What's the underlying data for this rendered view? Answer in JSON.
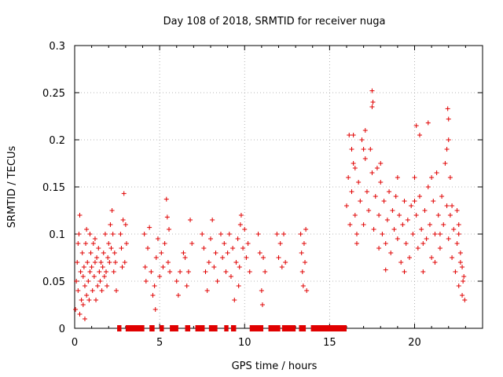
{
  "chart_data": {
    "type": "scatter",
    "title": "Day 108 of 2018, SRMTID for receiver nuga",
    "xlabel": "GPS time / hours",
    "ylabel": "SRMTID / TECUs",
    "xlim": [
      0,
      24
    ],
    "ylim": [
      0,
      0.3
    ],
    "xticks": [
      0,
      5,
      10,
      15,
      20
    ],
    "xtick_labels": [
      "0",
      "5",
      "10",
      "15",
      "20"
    ],
    "yticks": [
      0,
      0.05,
      0.1,
      0.15,
      0.2,
      0.25,
      0.3
    ],
    "ytick_labels": [
      "0",
      "0.05",
      "0.1",
      "0.15",
      "0.2",
      "0.25",
      "0.3"
    ],
    "grid": true,
    "marker": "+",
    "color": "#e00000",
    "series": [
      {
        "name": "SRMTID",
        "points": [
          [
            0.05,
            0.02
          ],
          [
            0.1,
            0.05
          ],
          [
            0.15,
            0.07
          ],
          [
            0.2,
            0.04
          ],
          [
            0.25,
            0.1
          ],
          [
            0.3,
            0.12
          ],
          [
            0.35,
            0.06
          ],
          [
            0.4,
            0.03
          ],
          [
            0.45,
            0.08
          ],
          [
            0.5,
            0.055
          ],
          [
            0.55,
            0.065
          ],
          [
            0.6,
            0.045
          ],
          [
            0.65,
            0.09
          ],
          [
            0.7,
            0.035
          ],
          [
            0.75,
            0.07
          ],
          [
            0.8,
            0.05
          ],
          [
            0.85,
            0.03
          ],
          [
            0.9,
            0.06
          ],
          [
            0.95,
            0.08
          ],
          [
            1.0,
            0.065
          ],
          [
            1.05,
            0.04
          ],
          [
            1.1,
            0.09
          ],
          [
            1.15,
            0.055
          ],
          [
            1.2,
            0.07
          ],
          [
            1.25,
            0.03
          ],
          [
            1.3,
            0.075
          ],
          [
            1.35,
            0.045
          ],
          [
            1.4,
            0.085
          ],
          [
            1.45,
            0.06
          ],
          [
            1.5,
            0.05
          ],
          [
            1.55,
            0.07
          ],
          [
            1.6,
            0.04
          ],
          [
            1.65,
            0.065
          ],
          [
            1.7,
            0.08
          ],
          [
            1.75,
            0.055
          ],
          [
            1.8,
            0.1
          ],
          [
            1.85,
            0.06
          ],
          [
            1.9,
            0.045
          ],
          [
            1.95,
            0.075
          ],
          [
            2.0,
            0.09
          ],
          [
            2.05,
            0.07
          ],
          [
            2.1,
            0.11
          ],
          [
            2.15,
            0.085
          ],
          [
            2.2,
            0.125
          ],
          [
            2.25,
            0.1
          ],
          [
            2.3,
            0.06
          ],
          [
            2.35,
            0.08
          ],
          [
            2.4,
            0.07
          ],
          [
            2.45,
            0.04
          ],
          [
            0.3,
            0.015
          ],
          [
            0.5,
            0.025
          ],
          [
            0.6,
            0.01
          ],
          [
            0.9,
            0.1
          ],
          [
            1.2,
            0.095
          ],
          [
            0.2,
            0.09
          ],
          [
            0.7,
            0.105
          ],
          [
            2.7,
            0.1
          ],
          [
            2.75,
            0.085
          ],
          [
            2.8,
            0.065
          ],
          [
            2.85,
            0.115
          ],
          [
            2.9,
            0.143
          ],
          [
            2.95,
            0.07
          ],
          [
            3.0,
            0.11
          ],
          [
            3.05,
            0.09
          ],
          [
            4.1,
            0.1
          ],
          [
            4.15,
            0.065
          ],
          [
            4.2,
            0.05
          ],
          [
            4.3,
            0.085
          ],
          [
            4.4,
            0.107
          ],
          [
            4.5,
            0.06
          ],
          [
            4.6,
            0.035
          ],
          [
            4.7,
            0.045
          ],
          [
            4.75,
            0.02
          ],
          [
            4.8,
            0.075
          ],
          [
            4.9,
            0.095
          ],
          [
            5.0,
            0.055
          ],
          [
            5.1,
            0.08
          ],
          [
            5.2,
            0.065
          ],
          [
            5.3,
            0.09
          ],
          [
            5.4,
            0.137
          ],
          [
            5.45,
            0.118
          ],
          [
            5.5,
            0.07
          ],
          [
            5.55,
            0.105
          ],
          [
            5.6,
            0.06
          ],
          [
            6.0,
            0.05
          ],
          [
            6.1,
            0.035
          ],
          [
            6.2,
            0.06
          ],
          [
            6.4,
            0.08
          ],
          [
            6.5,
            0.075
          ],
          [
            6.6,
            0.045
          ],
          [
            6.7,
            0.06
          ],
          [
            6.8,
            0.115
          ],
          [
            6.9,
            0.09
          ],
          [
            7.5,
            0.1
          ],
          [
            7.6,
            0.085
          ],
          [
            7.7,
            0.06
          ],
          [
            7.8,
            0.04
          ],
          [
            7.9,
            0.07
          ],
          [
            8.0,
            0.095
          ],
          [
            8.1,
            0.115
          ],
          [
            8.2,
            0.065
          ],
          [
            8.3,
            0.08
          ],
          [
            8.4,
            0.05
          ],
          [
            8.6,
            0.1
          ],
          [
            8.7,
            0.075
          ],
          [
            8.8,
            0.09
          ],
          [
            8.9,
            0.06
          ],
          [
            9.0,
            0.08
          ],
          [
            9.1,
            0.1
          ],
          [
            9.2,
            0.055
          ],
          [
            9.3,
            0.085
          ],
          [
            9.4,
            0.03
          ],
          [
            9.5,
            0.07
          ],
          [
            9.6,
            0.095
          ],
          [
            9.7,
            0.065
          ],
          [
            9.8,
            0.12
          ],
          [
            9.9,
            0.085
          ],
          [
            10.0,
            0.105
          ],
          [
            10.1,
            0.075
          ],
          [
            10.2,
            0.09
          ],
          [
            10.3,
            0.06
          ],
          [
            9.65,
            0.045
          ],
          [
            9.75,
            0.11
          ],
          [
            10.8,
            0.1
          ],
          [
            10.9,
            0.08
          ],
          [
            11.0,
            0.04
          ],
          [
            11.05,
            0.025
          ],
          [
            11.1,
            0.075
          ],
          [
            11.2,
            0.06
          ],
          [
            11.9,
            0.1
          ],
          [
            12.0,
            0.075
          ],
          [
            12.1,
            0.09
          ],
          [
            12.2,
            0.065
          ],
          [
            12.3,
            0.1
          ],
          [
            12.4,
            0.07
          ],
          [
            13.3,
            0.1
          ],
          [
            13.35,
            0.08
          ],
          [
            13.4,
            0.06
          ],
          [
            13.45,
            0.045
          ],
          [
            13.5,
            0.09
          ],
          [
            13.55,
            0.07
          ],
          [
            13.6,
            0.105
          ],
          [
            13.65,
            0.04
          ],
          [
            16.0,
            0.13
          ],
          [
            16.1,
            0.16
          ],
          [
            16.15,
            0.205
          ],
          [
            16.2,
            0.11
          ],
          [
            16.3,
            0.145
          ],
          [
            16.4,
            0.175
          ],
          [
            16.5,
            0.12
          ],
          [
            16.6,
            0.09
          ],
          [
            16.7,
            0.155
          ],
          [
            16.8,
            0.135
          ],
          [
            16.9,
            0.2
          ],
          [
            17.0,
            0.11
          ],
          [
            17.1,
            0.18
          ],
          [
            17.2,
            0.145
          ],
          [
            17.3,
            0.125
          ],
          [
            17.4,
            0.19
          ],
          [
            17.5,
            0.165
          ],
          [
            17.6,
            0.105
          ],
          [
            17.7,
            0.14
          ],
          [
            17.8,
            0.17
          ],
          [
            17.9,
            0.12
          ],
          [
            18.0,
            0.155
          ],
          [
            18.1,
            0.1
          ],
          [
            18.2,
            0.135
          ],
          [
            18.3,
            0.09
          ],
          [
            18.4,
            0.115
          ],
          [
            18.5,
            0.145
          ],
          [
            18.6,
            0.08
          ],
          [
            18.7,
            0.125
          ],
          [
            18.8,
            0.105
          ],
          [
            18.9,
            0.14
          ],
          [
            19.0,
            0.095
          ],
          [
            19.1,
            0.12
          ],
          [
            19.2,
            0.07
          ],
          [
            19.3,
            0.11
          ],
          [
            19.4,
            0.135
          ],
          [
            19.5,
            0.09
          ],
          [
            19.6,
            0.115
          ],
          [
            19.7,
            0.075
          ],
          [
            19.8,
            0.13
          ],
          [
            19.9,
            0.1
          ],
          [
            20.0,
            0.16
          ],
          [
            20.1,
            0.12
          ],
          [
            20.2,
            0.085
          ],
          [
            20.3,
            0.14
          ],
          [
            20.4,
            0.105
          ],
          [
            20.5,
            0.06
          ],
          [
            20.6,
            0.125
          ],
          [
            20.7,
            0.095
          ],
          [
            20.8,
            0.15
          ],
          [
            20.9,
            0.11
          ],
          [
            21.0,
            0.075
          ],
          [
            21.1,
            0.135
          ],
          [
            21.2,
            0.1
          ],
          [
            21.3,
            0.165
          ],
          [
            21.4,
            0.12
          ],
          [
            21.5,
            0.085
          ],
          [
            21.6,
            0.14
          ],
          [
            21.7,
            0.11
          ],
          [
            21.8,
            0.175
          ],
          [
            21.9,
            0.13
          ],
          [
            22.0,
            0.095
          ],
          [
            22.1,
            0.12
          ],
          [
            22.2,
            0.075
          ],
          [
            22.3,
            0.105
          ],
          [
            22.4,
            0.06
          ],
          [
            22.5,
            0.09
          ],
          [
            22.6,
            0.045
          ],
          [
            22.7,
            0.07
          ],
          [
            22.8,
            0.035
          ],
          [
            17.5,
            0.252
          ],
          [
            17.55,
            0.24
          ],
          [
            17.5,
            0.235
          ],
          [
            17.1,
            0.21
          ],
          [
            16.4,
            0.205
          ],
          [
            20.3,
            0.205
          ],
          [
            20.1,
            0.215
          ],
          [
            20.8,
            0.218
          ],
          [
            21.95,
            0.233
          ],
          [
            22.0,
            0.2
          ],
          [
            21.9,
            0.19
          ],
          [
            22.0,
            0.222
          ],
          [
            16.3,
            0.19
          ],
          [
            16.5,
            0.17
          ],
          [
            17.0,
            0.19
          ],
          [
            18.0,
            0.175
          ],
          [
            19.0,
            0.16
          ],
          [
            21.0,
            0.16
          ],
          [
            22.1,
            0.16
          ],
          [
            22.2,
            0.13
          ],
          [
            22.5,
            0.125
          ],
          [
            22.6,
            0.1
          ],
          [
            22.7,
            0.08
          ],
          [
            22.8,
            0.065
          ],
          [
            22.85,
            0.05
          ],
          [
            22.9,
            0.055
          ],
          [
            22.95,
            0.03
          ],
          [
            22.6,
            0.11
          ],
          [
            21.2,
            0.07
          ],
          [
            19.4,
            0.06
          ],
          [
            18.3,
            0.062
          ],
          [
            20.5,
            0.09
          ],
          [
            17.9,
            0.085
          ],
          [
            16.6,
            0.1
          ],
          [
            20.0,
            0.135
          ],
          [
            21.5,
            0.1
          ]
        ]
      }
    ],
    "coverage_markers": [
      [
        2.5,
        2.75
      ],
      [
        3.0,
        4.1
      ],
      [
        4.4,
        4.7
      ],
      [
        5.0,
        5.25
      ],
      [
        5.6,
        6.1
      ],
      [
        6.5,
        6.8
      ],
      [
        7.1,
        7.65
      ],
      [
        7.9,
        8.4
      ],
      [
        8.8,
        9.05
      ],
      [
        9.2,
        9.5
      ],
      [
        10.3,
        11.1
      ],
      [
        11.4,
        12.1
      ],
      [
        12.2,
        13.0
      ],
      [
        13.2,
        13.6
      ],
      [
        13.9,
        16.0
      ]
    ]
  }
}
